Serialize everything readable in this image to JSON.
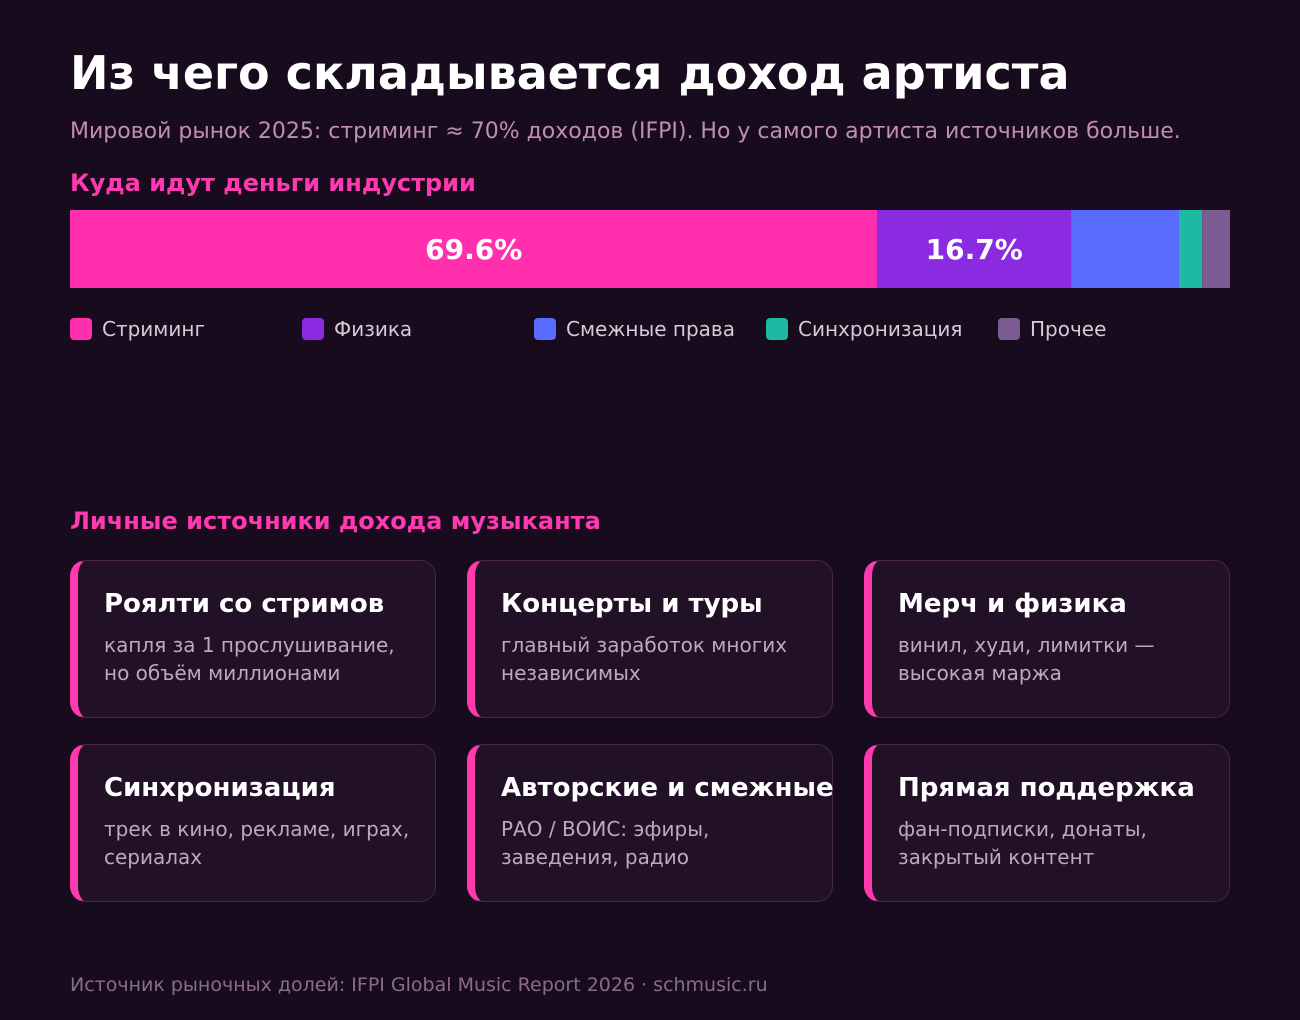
{
  "title": "Из чего складывается доход артиста",
  "subtitle": "Мировой рынок 2025: стриминг ≈ 70% доходов (IFPI). Но у самого артиста источников больше.",
  "sections": {
    "industry": "Куда идут деньги индустрии",
    "personal": "Личные источники дохода музыканта"
  },
  "chart_data": {
    "type": "bar",
    "stacked": true,
    "orientation": "horizontal",
    "unit": "%",
    "segments": [
      {
        "name": "Стриминг",
        "value": 69.6,
        "color": "#ff2fae",
        "label": "69.6%"
      },
      {
        "name": "Физика",
        "value": 16.7,
        "color": "#8a2be2",
        "label": "16.7%"
      },
      {
        "name": "Смежные права",
        "value": 9.3,
        "color": "#5a6cff",
        "label": ""
      },
      {
        "name": "Синхронизация",
        "value": 2.0,
        "color": "#1fb8a2",
        "label": ""
      },
      {
        "name": "Прочее",
        "value": 2.4,
        "color": "#7a5c92",
        "label": ""
      }
    ],
    "legend_position": "bottom"
  },
  "cards": [
    {
      "title": "Роялти со стримов",
      "text": "капля за 1 прослушивание, но объём миллионами"
    },
    {
      "title": "Концерты и туры",
      "text": "главный заработок многих независимых"
    },
    {
      "title": "Мерч и физика",
      "text": "винил, худи, лимитки — высокая маржа"
    },
    {
      "title": "Синхронизация",
      "text": "трек в кино, рекламе, играх, сериалах"
    },
    {
      "title": "Авторские и смежные",
      "text": "РАО / ВОИС: эфиры, заведения, радио"
    },
    {
      "title": "Прямая поддержка",
      "text": "фан-подписки, донаты, закрытый контент"
    }
  ],
  "footer": "Источник рыночных долей: IFPI Global Music Report 2026 · schmusic.ru",
  "colors": {
    "background": "#180b1d",
    "accent": "#ff3ab0",
    "card_bg": "#221027",
    "card_border": "#4a2348"
  }
}
